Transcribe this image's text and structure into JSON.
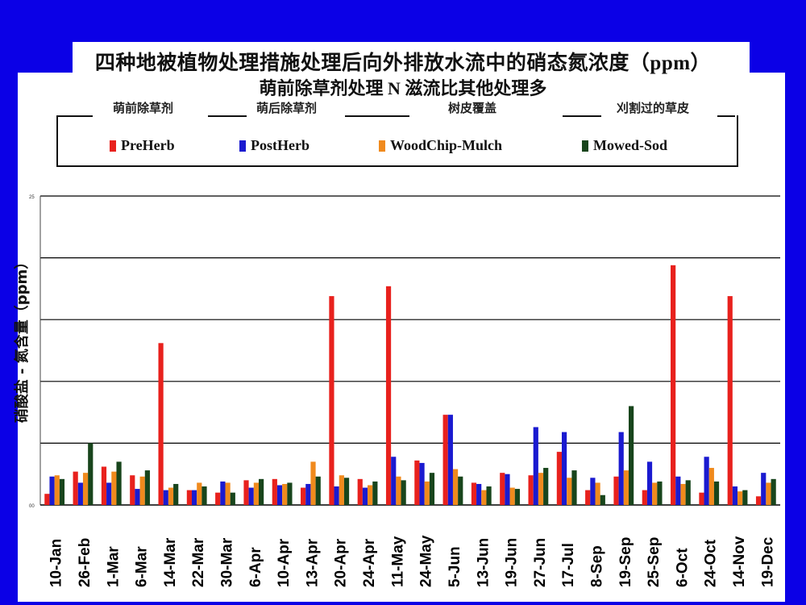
{
  "title_line1": "四种地被植物处理措施处理后向外排放水流中的硝态氮浓度（ppm）",
  "title_line2": "萌前除草剂处理 N 滋流比其他处理多",
  "group_labels": [
    "萌前除草剂",
    "萌后除草剂",
    "树皮覆盖",
    "刈割过的草皮"
  ],
  "legend": [
    "PreHerb",
    "PostHerb",
    "WoodChip-Mulch",
    "Mowed-Sod"
  ],
  "chart_data": {
    "type": "bar",
    "ylabel": "硝酸盐 - 氮含量（ppm）",
    "ylim": [
      0,
      25
    ],
    "y_ticks": [
      0,
      25
    ],
    "y_tick_labels": [
      "00",
      "25"
    ],
    "grid": true,
    "legend_position": "top",
    "categories": [
      "10-Jan",
      "26-Feb",
      "1-Mar",
      "6-Mar",
      "14-Mar",
      "22-Mar",
      "30-Mar",
      "6-Apr",
      "10-Apr",
      "13-Apr",
      "20-Apr",
      "24-Apr",
      "11-May",
      "24-May",
      "5-Jun",
      "13-Jun",
      "19-Jun",
      "27-Jun",
      "17-Jul",
      "8-Sep",
      "19-Sep",
      "25-Sep",
      "6-Oct",
      "24-Oct",
      "14-Nov",
      "19-Dec"
    ],
    "series": [
      {
        "name": "PreHerb",
        "color": "#e8211d",
        "values": [
          0.9,
          2.7,
          3.1,
          2.4,
          13.1,
          1.2,
          1.0,
          2.0,
          2.1,
          1.4,
          16.9,
          2.1,
          17.7,
          3.6,
          7.3,
          1.8,
          2.6,
          2.4,
          4.3,
          1.2,
          2.3,
          1.2,
          19.4,
          1.0,
          16.9,
          0.7
        ]
      },
      {
        "name": "PostHerb",
        "color": "#1a1ad0",
        "values": [
          2.3,
          1.8,
          1.8,
          1.3,
          1.2,
          1.2,
          1.9,
          1.4,
          1.6,
          1.7,
          1.5,
          1.4,
          3.9,
          3.4,
          7.3,
          1.7,
          2.5,
          6.3,
          5.9,
          2.2,
          5.9,
          3.5,
          2.3,
          3.9,
          1.5,
          2.6
        ]
      },
      {
        "name": "WoodChip-Mulch",
        "color": "#f08a1d",
        "values": [
          2.4,
          2.6,
          2.7,
          2.3,
          1.4,
          1.8,
          1.8,
          1.8,
          1.7,
          3.5,
          2.4,
          1.6,
          2.3,
          1.9,
          2.9,
          1.2,
          1.4,
          2.6,
          2.2,
          1.8,
          2.8,
          1.8,
          1.7,
          3.0,
          1.1,
          1.8
        ]
      },
      {
        "name": "Mowed-Sod",
        "color": "#18451c",
        "values": [
          2.1,
          5.0,
          3.5,
          2.8,
          1.7,
          1.5,
          1.0,
          2.1,
          1.8,
          2.3,
          2.2,
          1.9,
          2.0,
          2.6,
          2.3,
          1.5,
          1.3,
          3.0,
          2.8,
          0.8,
          8.0,
          1.9,
          2.0,
          1.9,
          1.2,
          2.1
        ]
      }
    ]
  }
}
